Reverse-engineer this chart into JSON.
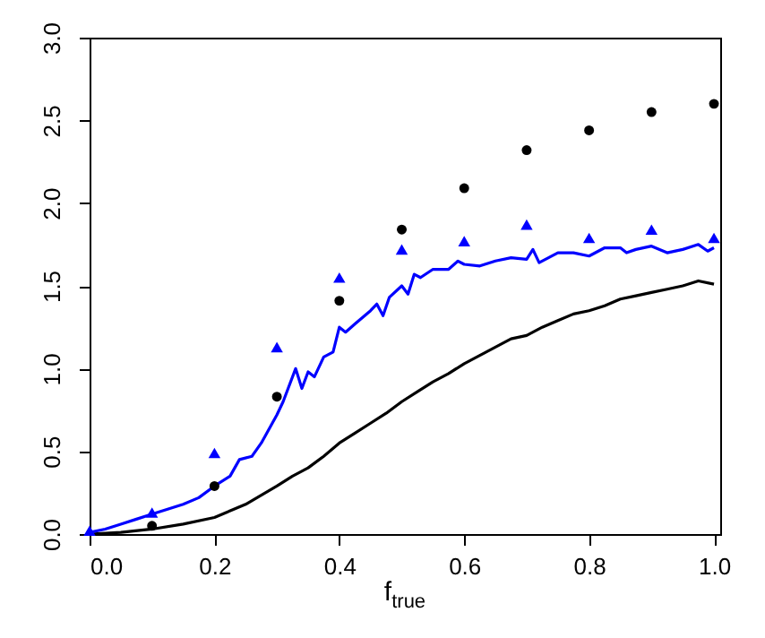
{
  "chart_data": {
    "type": "line",
    "xlabel": "f$_{true}$",
    "xlim": [
      0,
      1.01
    ],
    "xticks": [
      {
        "value": 0,
        "label": "0.0"
      },
      0.2,
      0.4,
      0.6,
      0.8,
      {
        "value": 1,
        "label": "1.0"
      }
    ],
    "ylim": [
      0,
      3
    ],
    "yticks": [
      {
        "value": 0,
        "label": "0.0"
      },
      0.5,
      {
        "value": 1,
        "label": "1.0"
      },
      1.5,
      {
        "value": 2,
        "label": "2.0"
      },
      2.5,
      {
        "value": 3,
        "label": "3.0"
      }
    ],
    "grid": false,
    "line_style": "solid",
    "series": [
      {
        "color": "#000000",
        "x": [
          0,
          0.05,
          0.1,
          0.15,
          0.2,
          0.25,
          0.3,
          0.325,
          0.35,
          0.375,
          0.4,
          0.425,
          0.45,
          0.475,
          0.5,
          0.525,
          0.55,
          0.575,
          0.6,
          0.625,
          0.65,
          0.675,
          0.7,
          0.725,
          0.75,
          0.775,
          0.8,
          0.825,
          0.85,
          0.875,
          0.9,
          0.925,
          0.95,
          0.975,
          1
        ],
        "values": [
          0,
          0.01,
          0.03,
          0.06,
          0.1,
          0.18,
          0.29,
          0.35,
          0.4,
          0.47,
          0.55,
          0.61,
          0.67,
          0.73,
          0.8,
          0.86,
          0.92,
          0.97,
          1.03,
          1.08,
          1.13,
          1.18,
          1.2,
          1.25,
          1.29,
          1.33,
          1.35,
          1.38,
          1.42,
          1.44,
          1.46,
          1.48,
          1.5,
          1.53,
          1.51
        ]
      },
      {
        "color": "#0000ff",
        "x": [
          0,
          0.025,
          0.05,
          0.075,
          0.1,
          0.125,
          0.15,
          0.175,
          0.2,
          0.225,
          0.24,
          0.26,
          0.275,
          0.3,
          0.31,
          0.33,
          0.34,
          0.35,
          0.36,
          0.375,
          0.39,
          0.4,
          0.41,
          0.425,
          0.45,
          0.46,
          0.47,
          0.48,
          0.5,
          0.51,
          0.52,
          0.53,
          0.55,
          0.575,
          0.59,
          0.6,
          0.625,
          0.65,
          0.675,
          0.7,
          0.71,
          0.72,
          0.75,
          0.775,
          0.8,
          0.825,
          0.85,
          0.86,
          0.875,
          0.9,
          0.925,
          0.95,
          0.975,
          0.99,
          1
        ],
        "values": [
          0.01,
          0.03,
          0.06,
          0.09,
          0.12,
          0.15,
          0.18,
          0.22,
          0.29,
          0.35,
          0.45,
          0.47,
          0.55,
          0.72,
          0.8,
          1,
          0.88,
          0.98,
          0.95,
          1.07,
          1.1,
          1.25,
          1.22,
          1.27,
          1.35,
          1.39,
          1.32,
          1.43,
          1.5,
          1.45,
          1.57,
          1.55,
          1.6,
          1.6,
          1.65,
          1.63,
          1.62,
          1.65,
          1.67,
          1.66,
          1.72,
          1.64,
          1.7,
          1.7,
          1.68,
          1.73,
          1.73,
          1.7,
          1.72,
          1.74,
          1.7,
          1.72,
          1.75,
          1.71,
          1.73
        ]
      },
      {
        "type": "scatter",
        "marker": "circle",
        "color": "#000000",
        "x": [
          0.1,
          0.2,
          0.3,
          0.4,
          0.5,
          0.6,
          0.7,
          0.8,
          0.9,
          1
        ],
        "values": [
          0.05,
          0.29,
          0.83,
          1.41,
          1.84,
          2.09,
          2.32,
          2.44,
          2.55,
          2.6
        ]
      },
      {
        "type": "scatter",
        "marker": "triangle",
        "color": "#0000ff",
        "x": [
          0,
          0.1,
          0.2,
          0.3,
          0.4,
          0.5,
          0.6,
          0.7,
          0.8,
          0.9,
          1
        ],
        "values": [
          0.02,
          0.13,
          0.49,
          1.13,
          1.55,
          1.72,
          1.77,
          1.87,
          1.79,
          1.84,
          1.79
        ]
      }
    ]
  }
}
